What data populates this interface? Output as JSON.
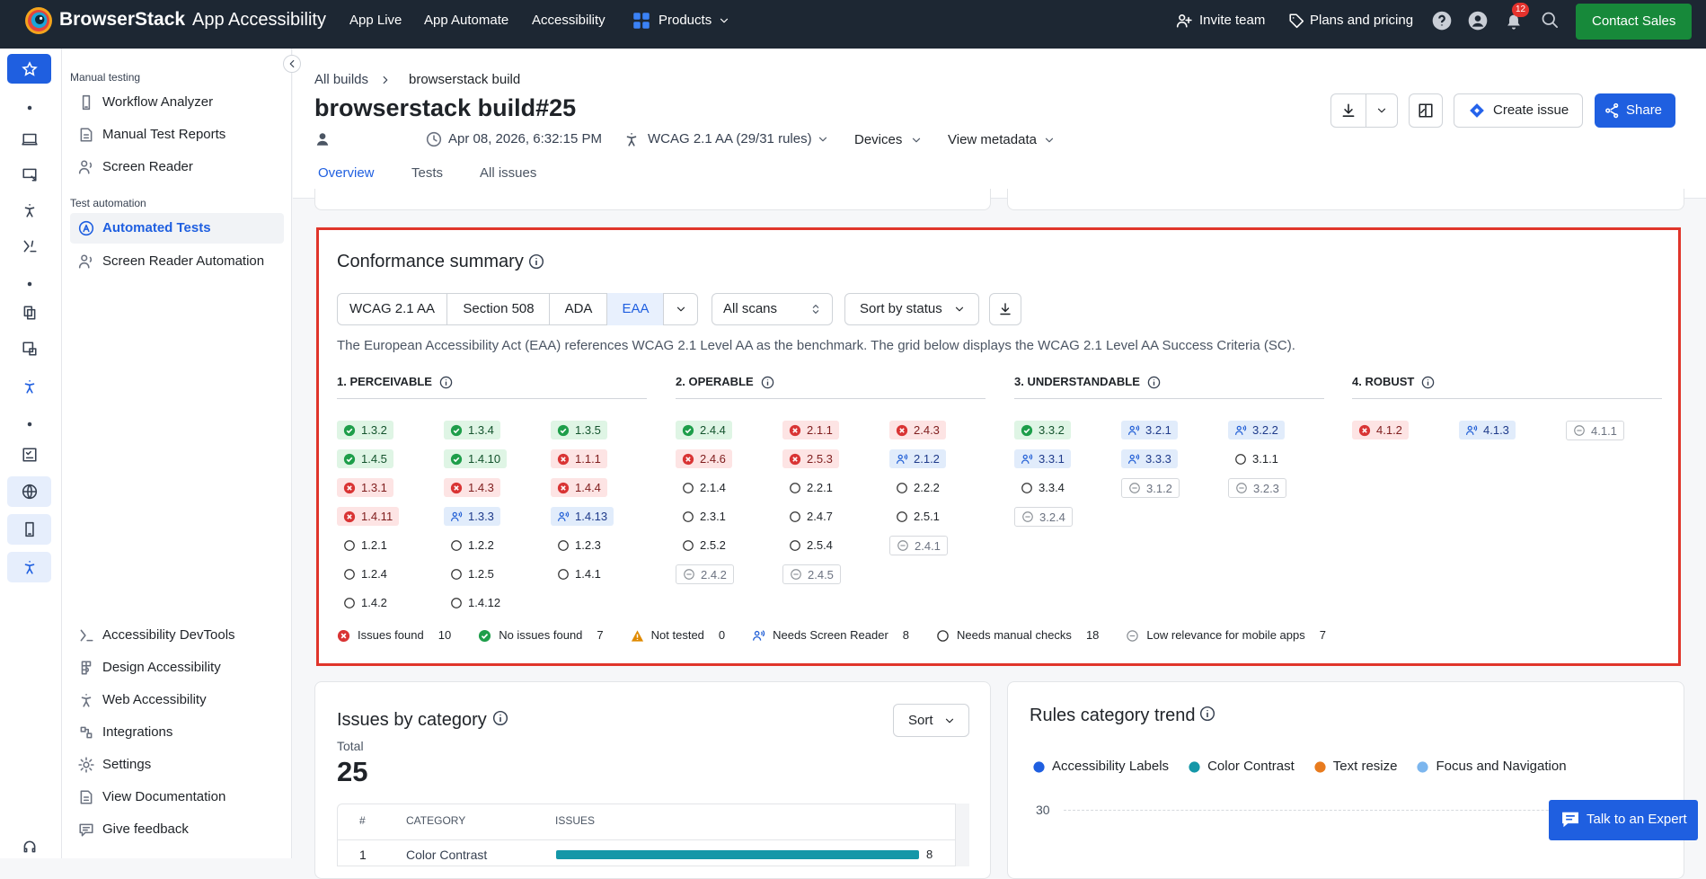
{
  "nav": {
    "brand": "BrowserStack",
    "product": "App Accessibility",
    "links": [
      "App Live",
      "App Automate",
      "Accessibility"
    ],
    "products": "Products",
    "invite": "Invite team",
    "pricing": "Plans and pricing",
    "badge": 12,
    "cta": "Contact Sales"
  },
  "sidebar": {
    "sections": [
      {
        "title": "Manual testing",
        "items": [
          "Workflow Analyzer",
          "Manual Test Reports",
          "Screen Reader"
        ]
      },
      {
        "title": "Test automation",
        "items": [
          "Automated Tests",
          "Screen Reader Automation"
        ]
      }
    ],
    "active": "Automated Tests",
    "footer": [
      "Accessibility DevTools",
      "Design Accessibility",
      "Web Accessibility",
      "Integrations",
      "Settings",
      "View Documentation",
      "Give feedback"
    ]
  },
  "header": {
    "breadcrumbs": [
      "All builds",
      "browserstack build"
    ],
    "title": "browserstack build#25",
    "date": "Apr 08, 2026, 6:32:15 PM",
    "standard": "WCAG 2.1 AA (29/31 rules)",
    "devices": "Devices",
    "metadata": "View metadata",
    "create_issue": "Create issue",
    "share": "Share",
    "tabs": [
      "Overview",
      "Tests",
      "All issues"
    ],
    "active_tab": 0
  },
  "conformance": {
    "title": "Conformance summary",
    "standards": [
      "WCAG 2.1 AA",
      "Section 508",
      "ADA",
      "EAA"
    ],
    "active": 3,
    "scans": "All scans",
    "sort": "Sort by status",
    "description": "The European Accessibility Act (EAA) references WCAG 2.1 Level AA as the benchmark. The grid below displays the WCAG 2.1 Level AA Success Criteria (SC).",
    "columns": [
      {
        "heading": "1. PERCEIVABLE",
        "items": [
          {
            "code": "1.3.2",
            "status": "pass"
          },
          {
            "code": "1.3.4",
            "status": "pass"
          },
          {
            "code": "1.3.5",
            "status": "pass"
          },
          {
            "code": "1.4.5",
            "status": "pass"
          },
          {
            "code": "1.4.10",
            "status": "pass"
          },
          {
            "code": "1.1.1",
            "status": "fail"
          },
          {
            "code": "1.3.1",
            "status": "fail"
          },
          {
            "code": "1.4.3",
            "status": "fail"
          },
          {
            "code": "1.4.4",
            "status": "fail"
          },
          {
            "code": "1.4.11",
            "status": "fail"
          },
          {
            "code": "1.3.3",
            "status": "screen-reader"
          },
          {
            "code": "1.4.13",
            "status": "screen-reader"
          },
          {
            "code": "1.2.1",
            "status": "manual"
          },
          {
            "code": "1.2.2",
            "status": "manual"
          },
          {
            "code": "1.2.3",
            "status": "manual"
          },
          {
            "code": "1.2.4",
            "status": "manual"
          },
          {
            "code": "1.2.5",
            "status": "manual"
          },
          {
            "code": "1.4.1",
            "status": "manual"
          },
          {
            "code": "1.4.2",
            "status": "manual"
          },
          {
            "code": "1.4.12",
            "status": "manual"
          }
        ]
      },
      {
        "heading": "2. OPERABLE",
        "items": [
          {
            "code": "2.4.4",
            "status": "pass"
          },
          {
            "code": "2.1.1",
            "status": "fail"
          },
          {
            "code": "2.4.3",
            "status": "fail"
          },
          {
            "code": "2.4.6",
            "status": "fail"
          },
          {
            "code": "2.5.3",
            "status": "fail"
          },
          {
            "code": "2.1.2",
            "status": "screen-reader"
          },
          {
            "code": "2.1.4",
            "status": "manual"
          },
          {
            "code": "2.2.1",
            "status": "manual"
          },
          {
            "code": "2.2.2",
            "status": "manual"
          },
          {
            "code": "2.3.1",
            "status": "manual"
          },
          {
            "code": "2.4.7",
            "status": "manual"
          },
          {
            "code": "2.5.1",
            "status": "manual"
          },
          {
            "code": "2.5.2",
            "status": "manual"
          },
          {
            "code": "2.5.4",
            "status": "manual"
          },
          {
            "code": "2.4.1",
            "status": "low"
          },
          {
            "code": "2.4.2",
            "status": "low"
          },
          {
            "code": "2.4.5",
            "status": "low"
          }
        ]
      },
      {
        "heading": "3. UNDERSTANDABLE",
        "items": [
          {
            "code": "3.3.2",
            "status": "pass"
          },
          {
            "code": "3.2.1",
            "status": "screen-reader"
          },
          {
            "code": "3.2.2",
            "status": "screen-reader"
          },
          {
            "code": "3.3.1",
            "status": "screen-reader"
          },
          {
            "code": "3.3.3",
            "status": "screen-reader"
          },
          {
            "code": "3.1.1",
            "status": "manual"
          },
          {
            "code": "3.3.4",
            "status": "manual"
          },
          {
            "code": "3.1.2",
            "status": "low"
          },
          {
            "code": "3.2.3",
            "status": "low"
          },
          {
            "code": "3.2.4",
            "status": "low"
          }
        ]
      },
      {
        "heading": "4. ROBUST",
        "items": [
          {
            "code": "4.1.2",
            "status": "fail"
          },
          {
            "code": "4.1.3",
            "status": "screen-reader"
          },
          {
            "code": "4.1.1",
            "status": "low"
          }
        ]
      }
    ],
    "legend": [
      {
        "label": "Issues found",
        "count": 10,
        "status": "fail"
      },
      {
        "label": "No issues found",
        "count": 7,
        "status": "pass"
      },
      {
        "label": "Not tested",
        "count": 0,
        "status": "warn"
      },
      {
        "label": "Needs Screen Reader",
        "count": 8,
        "status": "screen-reader"
      },
      {
        "label": "Needs manual checks",
        "count": 18,
        "status": "manual"
      },
      {
        "label": "Low relevance for mobile apps",
        "count": 7,
        "status": "low"
      }
    ]
  },
  "issues": {
    "title": "Issues by category",
    "sort": "Sort",
    "total_label": "Total",
    "total": 25,
    "columns": [
      "#",
      "CATEGORY",
      "ISSUES"
    ],
    "bar_color": "#1497a8",
    "rows": [
      {
        "index": 1,
        "category": "Color Contrast",
        "issues": 8
      }
    ]
  },
  "trend": {
    "title": "Rules category trend",
    "legend": [
      {
        "name": "Accessibility Labels",
        "color": "#1f5fe0"
      },
      {
        "name": "Color Contrast",
        "color": "#1497a8"
      },
      {
        "name": "Text resize",
        "color": "#e87b1e"
      },
      {
        "name": "Focus and Navigation",
        "color": "#7cb6ee"
      }
    ],
    "yticks": [
      30
    ]
  },
  "expert": "Talk to an Expert"
}
